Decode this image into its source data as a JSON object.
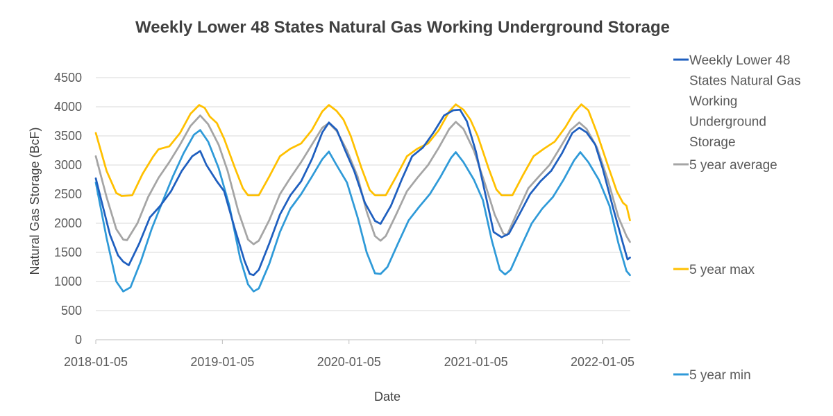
{
  "chart_data": {
    "type": "line",
    "title": "Weekly Lower 48 States Natural Gas Working Underground Storage",
    "xlabel": "Date",
    "ylabel": "Natural Gas Storage (BcF)",
    "ylim": [
      0,
      4500
    ],
    "yticks": [
      0,
      500,
      1000,
      1500,
      2000,
      2500,
      3000,
      3500,
      4000,
      4500
    ],
    "xlim": [
      "2018-01-05",
      "2022-03-25"
    ],
    "xticks": [
      "2018-01-05",
      "2019-01-05",
      "2020-01-05",
      "2021-01-05",
      "2022-01-05"
    ],
    "grid": "horizontal",
    "legend": "right",
    "series": [
      {
        "name": "Weekly Lower 48 States Natural Gas Working Underground Storage",
        "color": "#1f5fbf",
        "legend_lines": [
          "Weekly Lower 48",
          "States Natural Gas",
          "Working",
          "Underground",
          "Storage"
        ],
        "points": [
          [
            "2018-01-05",
            2770
          ],
          [
            "2018-02-15",
            1800
          ],
          [
            "2018-03-10",
            1450
          ],
          [
            "2018-03-25",
            1340
          ],
          [
            "2018-04-10",
            1280
          ],
          [
            "2018-05-10",
            1650
          ],
          [
            "2018-06-10",
            2100
          ],
          [
            "2018-07-10",
            2300
          ],
          [
            "2018-08-10",
            2550
          ],
          [
            "2018-09-10",
            2900
          ],
          [
            "2018-10-10",
            3150
          ],
          [
            "2018-11-02",
            3240
          ],
          [
            "2018-11-20",
            3000
          ],
          [
            "2018-12-20",
            2720
          ],
          [
            "2019-01-10",
            2550
          ],
          [
            "2019-02-10",
            1900
          ],
          [
            "2019-03-10",
            1350
          ],
          [
            "2019-03-25",
            1130
          ],
          [
            "2019-04-05",
            1110
          ],
          [
            "2019-04-20",
            1200
          ],
          [
            "2019-05-20",
            1650
          ],
          [
            "2019-06-20",
            2150
          ],
          [
            "2019-07-20",
            2480
          ],
          [
            "2019-08-20",
            2720
          ],
          [
            "2019-09-20",
            3100
          ],
          [
            "2019-10-20",
            3560
          ],
          [
            "2019-11-08",
            3730
          ],
          [
            "2019-12-01",
            3600
          ],
          [
            "2019-12-25",
            3250
          ],
          [
            "2020-01-20",
            2900
          ],
          [
            "2020-02-20",
            2350
          ],
          [
            "2020-03-20",
            2040
          ],
          [
            "2020-04-05",
            1990
          ],
          [
            "2020-05-05",
            2300
          ],
          [
            "2020-06-05",
            2750
          ],
          [
            "2020-07-05",
            3150
          ],
          [
            "2020-08-05",
            3300
          ],
          [
            "2020-09-05",
            3560
          ],
          [
            "2020-10-05",
            3850
          ],
          [
            "2020-11-01",
            3940
          ],
          [
            "2020-11-20",
            3950
          ],
          [
            "2020-12-10",
            3750
          ],
          [
            "2021-01-05",
            3230
          ],
          [
            "2021-02-05",
            2400
          ],
          [
            "2021-02-25",
            1850
          ],
          [
            "2021-03-20",
            1760
          ],
          [
            "2021-04-10",
            1820
          ],
          [
            "2021-05-10",
            2150
          ],
          [
            "2021-06-10",
            2500
          ],
          [
            "2021-07-10",
            2720
          ],
          [
            "2021-08-10",
            2900
          ],
          [
            "2021-09-10",
            3200
          ],
          [
            "2021-10-10",
            3550
          ],
          [
            "2021-10-30",
            3640
          ],
          [
            "2021-11-20",
            3560
          ],
          [
            "2021-12-15",
            3350
          ],
          [
            "2022-01-05",
            2950
          ],
          [
            "2022-02-05",
            2250
          ],
          [
            "2022-03-05",
            1650
          ],
          [
            "2022-03-18",
            1380
          ],
          [
            "2022-03-25",
            1410
          ]
        ]
      },
      {
        "name": "5 year average",
        "color": "#a5a5a5",
        "points": [
          [
            "2018-01-05",
            3150
          ],
          [
            "2018-02-05",
            2450
          ],
          [
            "2018-03-05",
            1900
          ],
          [
            "2018-03-25",
            1720
          ],
          [
            "2018-04-05",
            1710
          ],
          [
            "2018-05-05",
            2000
          ],
          [
            "2018-06-05",
            2450
          ],
          [
            "2018-07-05",
            2780
          ],
          [
            "2018-08-05",
            3050
          ],
          [
            "2018-09-05",
            3350
          ],
          [
            "2018-10-05",
            3670
          ],
          [
            "2018-11-02",
            3850
          ],
          [
            "2018-11-25",
            3700
          ],
          [
            "2018-12-25",
            3350
          ],
          [
            "2019-01-20",
            2900
          ],
          [
            "2019-02-20",
            2200
          ],
          [
            "2019-03-20",
            1720
          ],
          [
            "2019-04-05",
            1640
          ],
          [
            "2019-04-20",
            1700
          ],
          [
            "2019-05-20",
            2050
          ],
          [
            "2019-06-20",
            2500
          ],
          [
            "2019-07-20",
            2780
          ],
          [
            "2019-08-20",
            3050
          ],
          [
            "2019-09-20",
            3350
          ],
          [
            "2019-10-20",
            3640
          ],
          [
            "2019-11-08",
            3720
          ],
          [
            "2019-12-01",
            3580
          ],
          [
            "2019-12-30",
            3250
          ],
          [
            "2020-01-30",
            2800
          ],
          [
            "2020-02-25",
            2200
          ],
          [
            "2020-03-20",
            1780
          ],
          [
            "2020-04-05",
            1700
          ],
          [
            "2020-04-20",
            1780
          ],
          [
            "2020-05-20",
            2150
          ],
          [
            "2020-06-20",
            2550
          ],
          [
            "2020-07-20",
            2780
          ],
          [
            "2020-08-20",
            3000
          ],
          [
            "2020-09-20",
            3300
          ],
          [
            "2020-10-20",
            3620
          ],
          [
            "2020-11-08",
            3740
          ],
          [
            "2020-11-30",
            3620
          ],
          [
            "2020-12-30",
            3250
          ],
          [
            "2021-01-30",
            2700
          ],
          [
            "2021-02-28",
            2150
          ],
          [
            "2021-03-25",
            1820
          ],
          [
            "2021-04-05",
            1800
          ],
          [
            "2021-05-05",
            2200
          ],
          [
            "2021-06-05",
            2600
          ],
          [
            "2021-07-05",
            2800
          ],
          [
            "2021-08-05",
            3000
          ],
          [
            "2021-09-05",
            3300
          ],
          [
            "2021-10-05",
            3600
          ],
          [
            "2021-10-30",
            3730
          ],
          [
            "2021-11-20",
            3620
          ],
          [
            "2021-12-20",
            3300
          ],
          [
            "2022-01-20",
            2750
          ],
          [
            "2022-02-20",
            2100
          ],
          [
            "2022-03-15",
            1780
          ],
          [
            "2022-03-25",
            1680
          ]
        ]
      },
      {
        "name": "5 year max",
        "color": "#ffc000",
        "points": [
          [
            "2018-01-05",
            3550
          ],
          [
            "2018-02-05",
            2900
          ],
          [
            "2018-03-05",
            2520
          ],
          [
            "2018-03-20",
            2470
          ],
          [
            "2018-04-20",
            2480
          ],
          [
            "2018-05-20",
            2850
          ],
          [
            "2018-06-20",
            3150
          ],
          [
            "2018-07-05",
            3270
          ],
          [
            "2018-08-05",
            3320
          ],
          [
            "2018-09-05",
            3550
          ],
          [
            "2018-10-05",
            3880
          ],
          [
            "2018-10-30",
            4030
          ],
          [
            "2018-11-15",
            3980
          ],
          [
            "2018-11-30",
            3830
          ],
          [
            "2018-12-20",
            3720
          ],
          [
            "2019-01-10",
            3450
          ],
          [
            "2019-02-10",
            2950
          ],
          [
            "2019-03-05",
            2600
          ],
          [
            "2019-03-20",
            2480
          ],
          [
            "2019-04-20",
            2480
          ],
          [
            "2019-05-20",
            2800
          ],
          [
            "2019-06-20",
            3150
          ],
          [
            "2019-07-20",
            3280
          ],
          [
            "2019-08-20",
            3370
          ],
          [
            "2019-09-20",
            3600
          ],
          [
            "2019-10-20",
            3920
          ],
          [
            "2019-11-08",
            4030
          ],
          [
            "2019-11-30",
            3930
          ],
          [
            "2019-12-20",
            3780
          ],
          [
            "2020-01-10",
            3500
          ],
          [
            "2020-02-10",
            2950
          ],
          [
            "2020-03-05",
            2570
          ],
          [
            "2020-03-20",
            2480
          ],
          [
            "2020-04-20",
            2480
          ],
          [
            "2020-05-20",
            2800
          ],
          [
            "2020-06-20",
            3150
          ],
          [
            "2020-07-20",
            3280
          ],
          [
            "2020-08-20",
            3370
          ],
          [
            "2020-09-20",
            3600
          ],
          [
            "2020-10-20",
            3920
          ],
          [
            "2020-11-08",
            4040
          ],
          [
            "2020-11-30",
            3950
          ],
          [
            "2020-12-20",
            3780
          ],
          [
            "2021-01-10",
            3500
          ],
          [
            "2021-02-10",
            2950
          ],
          [
            "2021-03-05",
            2580
          ],
          [
            "2021-03-20",
            2480
          ],
          [
            "2021-04-20",
            2480
          ],
          [
            "2021-05-20",
            2820
          ],
          [
            "2021-06-20",
            3150
          ],
          [
            "2021-07-20",
            3280
          ],
          [
            "2021-08-20",
            3400
          ],
          [
            "2021-09-20",
            3650
          ],
          [
            "2021-10-15",
            3900
          ],
          [
            "2021-11-05",
            4040
          ],
          [
            "2021-11-25",
            3940
          ],
          [
            "2021-12-20",
            3550
          ],
          [
            "2022-01-20",
            3000
          ],
          [
            "2022-02-15",
            2550
          ],
          [
            "2022-03-05",
            2350
          ],
          [
            "2022-03-15",
            2300
          ],
          [
            "2022-03-25",
            2050
          ]
        ]
      },
      {
        "name": "5 year min",
        "color": "#2f9ad8",
        "points": [
          [
            "2018-01-05",
            2700
          ],
          [
            "2018-02-05",
            1750
          ],
          [
            "2018-03-05",
            1000
          ],
          [
            "2018-03-25",
            830
          ],
          [
            "2018-04-15",
            900
          ],
          [
            "2018-05-15",
            1350
          ],
          [
            "2018-06-15",
            1900
          ],
          [
            "2018-07-15",
            2350
          ],
          [
            "2018-08-15",
            2800
          ],
          [
            "2018-09-15",
            3200
          ],
          [
            "2018-10-15",
            3520
          ],
          [
            "2018-11-02",
            3600
          ],
          [
            "2018-11-25",
            3400
          ],
          [
            "2018-12-25",
            2950
          ],
          [
            "2019-01-25",
            2300
          ],
          [
            "2019-02-25",
            1400
          ],
          [
            "2019-03-20",
            950
          ],
          [
            "2019-04-05",
            830
          ],
          [
            "2019-04-20",
            880
          ],
          [
            "2019-05-20",
            1300
          ],
          [
            "2019-06-20",
            1850
          ],
          [
            "2019-07-20",
            2250
          ],
          [
            "2019-08-20",
            2500
          ],
          [
            "2019-09-20",
            2800
          ],
          [
            "2019-10-20",
            3100
          ],
          [
            "2019-11-08",
            3230
          ],
          [
            "2019-11-30",
            3000
          ],
          [
            "2019-12-30",
            2700
          ],
          [
            "2020-01-30",
            2100
          ],
          [
            "2020-02-25",
            1500
          ],
          [
            "2020-03-20",
            1140
          ],
          [
            "2020-04-05",
            1130
          ],
          [
            "2020-04-25",
            1250
          ],
          [
            "2020-05-25",
            1650
          ],
          [
            "2020-06-25",
            2050
          ],
          [
            "2020-07-25",
            2280
          ],
          [
            "2020-08-25",
            2500
          ],
          [
            "2020-09-25",
            2800
          ],
          [
            "2020-10-25",
            3120
          ],
          [
            "2020-11-08",
            3220
          ],
          [
            "2020-11-30",
            3050
          ],
          [
            "2020-12-30",
            2750
          ],
          [
            "2021-01-25",
            2400
          ],
          [
            "2021-02-20",
            1700
          ],
          [
            "2021-03-15",
            1200
          ],
          [
            "2021-03-30",
            1120
          ],
          [
            "2021-04-15",
            1200
          ],
          [
            "2021-05-15",
            1600
          ],
          [
            "2021-06-15",
            2000
          ],
          [
            "2021-07-15",
            2250
          ],
          [
            "2021-08-15",
            2450
          ],
          [
            "2021-09-15",
            2750
          ],
          [
            "2021-10-15",
            3080
          ],
          [
            "2021-11-02",
            3220
          ],
          [
            "2021-11-25",
            3050
          ],
          [
            "2021-12-25",
            2750
          ],
          [
            "2022-01-25",
            2300
          ],
          [
            "2022-02-20",
            1650
          ],
          [
            "2022-03-15",
            1180
          ],
          [
            "2022-03-25",
            1110
          ]
        ]
      }
    ]
  }
}
